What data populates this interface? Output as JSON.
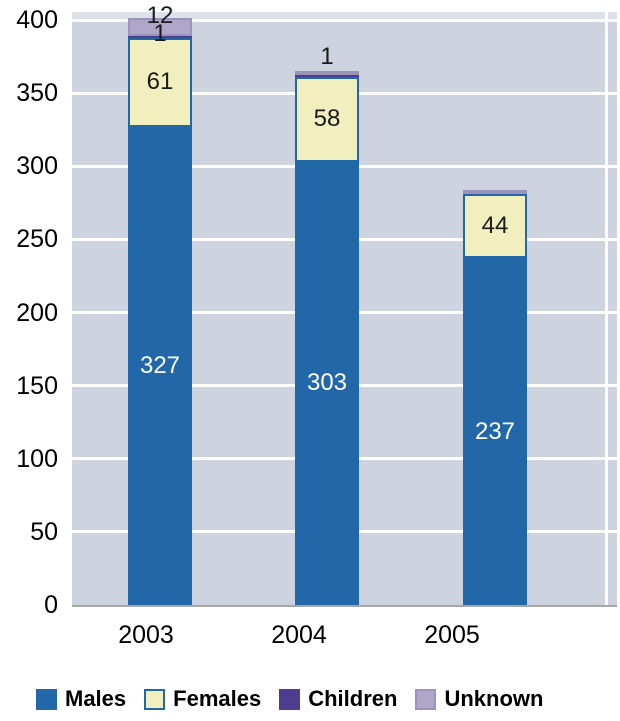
{
  "chart_data": {
    "type": "bar",
    "stacked": true,
    "title": "",
    "xlabel": "",
    "ylabel": "",
    "categories": [
      "2003",
      "2004",
      "2005"
    ],
    "series": [
      {
        "name": "Males",
        "color": "#2268A8",
        "border": "",
        "values": [
          327,
          303,
          237
        ],
        "labels": [
          "327",
          "303",
          "237"
        ],
        "label_color": "#FFFFFF"
      },
      {
        "name": "Females",
        "color": "#F2EFBE",
        "border": "#2268A8",
        "values": [
          61,
          58,
          44
        ],
        "labels": [
          "61",
          "58",
          "44"
        ],
        "label_color": "#1A1A1A"
      },
      {
        "name": "Children",
        "color": "#4E3D8F",
        "border": "",
        "values": [
          1,
          1,
          0
        ],
        "labels": [
          "1",
          "1",
          ""
        ],
        "label_color": "#1A1A1A"
      },
      {
        "name": "Unknown",
        "color": "#AFA6C9",
        "border": "#9C93BC",
        "values": [
          12,
          1,
          1
        ],
        "labels": [
          "12",
          "",
          ""
        ],
        "label_color": "#1A1A1A"
      }
    ],
    "ylim": [
      0,
      400
    ],
    "yticks": [
      0,
      50,
      100,
      150,
      200,
      250,
      300,
      350,
      400
    ],
    "grid": "horizontal, white, every 50",
    "legend_position": "bottom",
    "colors": {
      "plot_bg": "#CDD4E0",
      "plot_bg_above_max": "#DCE1EA",
      "gridline": "#FFFFFF",
      "axis_line": "#A6A6A6",
      "tick_text": "#000000"
    }
  }
}
